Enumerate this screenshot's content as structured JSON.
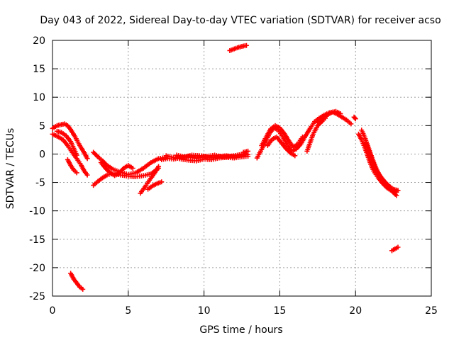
{
  "chart_data": {
    "type": "scatter",
    "title": "Day 043 of 2022, Sidereal Day-to-day VTEC variation (SDTVAR) for receiver acso",
    "xlabel": "GPS time / hours",
    "ylabel": "SDTVAR / TECUs",
    "xlim": [
      0,
      25
    ],
    "ylim": [
      -25,
      20
    ],
    "xticks": [
      0,
      5,
      10,
      15,
      20,
      25
    ],
    "yticks": [
      -25,
      -20,
      -15,
      -10,
      -5,
      0,
      5,
      10,
      15,
      20
    ],
    "grid": true,
    "marker": "+",
    "series": [
      {
        "name": "SDTVAR",
        "color": "#ff0000",
        "segments": [
          [
            [
              0.0,
              4.5
            ],
            [
              0.3,
              5.0
            ],
            [
              0.6,
              5.2
            ],
            [
              0.8,
              5.3
            ],
            [
              1.0,
              5.0
            ],
            [
              1.2,
              4.3
            ],
            [
              1.5,
              3.0
            ],
            [
              1.8,
              1.5
            ],
            [
              2.1,
              0.2
            ],
            [
              2.3,
              -0.8
            ]
          ],
          [
            [
              0.0,
              3.5
            ],
            [
              0.4,
              3.0
            ],
            [
              0.7,
              2.5
            ],
            [
              1.0,
              1.5
            ],
            [
              1.3,
              0.3
            ],
            [
              1.6,
              -0.8
            ],
            [
              1.9,
              -2.0
            ],
            [
              2.1,
              -3.0
            ],
            [
              2.3,
              -3.7
            ]
          ],
          [
            [
              0.3,
              4.0
            ],
            [
              0.6,
              3.8
            ],
            [
              0.9,
              3.2
            ],
            [
              1.2,
              2.2
            ],
            [
              1.4,
              1.0
            ],
            [
              1.6,
              -0.2
            ]
          ],
          [
            [
              1.0,
              -1.0
            ],
            [
              1.2,
              -2.0
            ],
            [
              1.4,
              -2.8
            ],
            [
              1.6,
              -3.3
            ]
          ],
          [
            [
              1.2,
              -21.0
            ],
            [
              1.4,
              -22.0
            ],
            [
              1.6,
              -22.7
            ],
            [
              1.8,
              -23.4
            ],
            [
              2.0,
              -23.8
            ]
          ],
          [
            [
              2.7,
              0.3
            ],
            [
              3.0,
              -0.5
            ],
            [
              3.3,
              -1.2
            ],
            [
              3.6,
              -2.0
            ],
            [
              4.0,
              -2.7
            ],
            [
              4.5,
              -3.2
            ],
            [
              5.0,
              -3.6
            ],
            [
              5.5,
              -3.3
            ],
            [
              6.0,
              -2.5
            ],
            [
              6.5,
              -1.5
            ],
            [
              7.0,
              -0.8
            ],
            [
              7.5,
              -0.6
            ]
          ],
          [
            [
              2.7,
              -5.5
            ],
            [
              3.0,
              -4.8
            ],
            [
              3.3,
              -4.2
            ],
            [
              3.6,
              -3.7
            ],
            [
              4.0,
              -3.4
            ],
            [
              4.5,
              -3.7
            ],
            [
              5.0,
              -3.9
            ],
            [
              5.5,
              -4.0
            ],
            [
              6.0,
              -3.8
            ],
            [
              6.5,
              -3.5
            ],
            [
              7.0,
              -2.5
            ]
          ],
          [
            [
              3.2,
              -1.5
            ],
            [
              3.5,
              -2.5
            ],
            [
              3.8,
              -3.3
            ],
            [
              4.1,
              -3.8
            ],
            [
              4.4,
              -3.4
            ],
            [
              4.7,
              -2.5
            ],
            [
              5.0,
              -2.0
            ],
            [
              5.3,
              -2.5
            ]
          ],
          [
            [
              5.8,
              -6.9
            ],
            [
              6.1,
              -5.8
            ],
            [
              6.4,
              -4.6
            ],
            [
              6.7,
              -3.5
            ],
            [
              7.0,
              -2.2
            ]
          ],
          [
            [
              6.3,
              -6.2
            ],
            [
              6.6,
              -5.6
            ],
            [
              6.9,
              -5.2
            ],
            [
              7.2,
              -4.9
            ]
          ],
          [
            [
              7.2,
              -1.0
            ],
            [
              7.6,
              -0.8
            ],
            [
              8.0,
              -0.9
            ],
            [
              8.5,
              -0.6
            ],
            [
              9.0,
              -0.4
            ],
            [
              9.5,
              -0.8
            ],
            [
              10.0,
              -0.5
            ],
            [
              10.5,
              -0.7
            ],
            [
              11.0,
              -0.4
            ],
            [
              11.5,
              -0.3
            ],
            [
              12.0,
              -0.5
            ],
            [
              12.5,
              -0.3
            ],
            [
              12.9,
              -0.1
            ]
          ],
          [
            [
              7.5,
              -0.3
            ],
            [
              8.0,
              -0.6
            ],
            [
              8.5,
              -0.9
            ],
            [
              9.0,
              -1.1
            ],
            [
              9.5,
              -1.2
            ],
            [
              10.0,
              -0.9
            ],
            [
              10.5,
              -1.0
            ],
            [
              11.0,
              -0.7
            ],
            [
              11.5,
              -0.6
            ],
            [
              12.0,
              -0.7
            ],
            [
              12.5,
              -0.5
            ],
            [
              12.9,
              -0.4
            ]
          ],
          [
            [
              8.2,
              -0.2
            ],
            [
              8.7,
              -0.5
            ],
            [
              9.2,
              -0.2
            ],
            [
              9.7,
              -0.3
            ],
            [
              10.2,
              -0.4
            ],
            [
              10.7,
              -0.2
            ],
            [
              11.2,
              -0.5
            ],
            [
              11.7,
              -0.4
            ],
            [
              12.2,
              -0.2
            ],
            [
              12.7,
              0.1
            ]
          ],
          [
            [
              11.7,
              18.2
            ],
            [
              12.0,
              18.5
            ],
            [
              12.3,
              18.8
            ],
            [
              12.6,
              19.0
            ],
            [
              12.8,
              19.1
            ]
          ],
          [
            [
              12.6,
              0.3
            ],
            [
              12.9,
              0.5
            ]
          ],
          [
            [
              13.5,
              -0.7
            ],
            [
              13.8,
              0.8
            ],
            [
              14.1,
              2.3
            ],
            [
              14.3,
              3.5
            ],
            [
              14.6,
              4.6
            ],
            [
              14.9,
              4.2
            ],
            [
              15.2,
              3.0
            ],
            [
              15.5,
              1.6
            ],
            [
              15.8,
              0.5
            ],
            [
              16.1,
              0.9
            ],
            [
              16.4,
              1.8
            ],
            [
              16.7,
              3.2
            ],
            [
              17.0,
              4.5
            ],
            [
              17.3,
              5.7
            ],
            [
              17.6,
              6.3
            ],
            [
              17.9,
              6.8
            ],
            [
              18.2,
              7.2
            ],
            [
              18.5,
              7.4
            ],
            [
              18.8,
              7.0
            ],
            [
              19.1,
              6.5
            ],
            [
              19.4,
              6.0
            ],
            [
              19.7,
              5.3
            ]
          ],
          [
            [
              13.8,
              1.5
            ],
            [
              14.1,
              3.0
            ],
            [
              14.4,
              4.4
            ],
            [
              14.7,
              5.0
            ],
            [
              15.0,
              4.6
            ],
            [
              15.3,
              3.6
            ],
            [
              15.6,
              2.3
            ],
            [
              15.9,
              1.2
            ],
            [
              16.2,
              1.8
            ],
            [
              16.5,
              3.0
            ]
          ],
          [
            [
              14.2,
              1.5
            ],
            [
              14.5,
              2.6
            ],
            [
              14.8,
              3.0
            ],
            [
              15.1,
              2.0
            ],
            [
              15.4,
              1.0
            ],
            [
              15.7,
              0.2
            ],
            [
              16.0,
              -0.3
            ]
          ],
          [
            [
              16.8,
              0.5
            ],
            [
              17.0,
              2.0
            ],
            [
              17.2,
              3.5
            ],
            [
              17.5,
              5.0
            ],
            [
              17.8,
              5.8
            ],
            [
              18.0,
              6.3
            ]
          ],
          [
            [
              17.5,
              5.5
            ],
            [
              17.8,
              6.2
            ],
            [
              18.1,
              6.8
            ],
            [
              18.4,
              7.3
            ],
            [
              18.7,
              7.5
            ],
            [
              19.0,
              7.1
            ]
          ],
          [
            [
              19.9,
              6.5
            ],
            [
              20.0,
              6.2
            ]
          ],
          [
            [
              20.2,
              3.5
            ],
            [
              20.4,
              2.5
            ],
            [
              20.6,
              1.2
            ],
            [
              20.8,
              -0.3
            ],
            [
              21.0,
              -1.8
            ],
            [
              21.2,
              -3.0
            ],
            [
              21.5,
              -4.2
            ],
            [
              21.8,
              -5.2
            ],
            [
              22.1,
              -6.0
            ],
            [
              22.4,
              -6.5
            ],
            [
              22.7,
              -6.7
            ]
          ],
          [
            [
              20.4,
              4.2
            ],
            [
              20.6,
              3.0
            ],
            [
              20.8,
              1.5
            ],
            [
              21.0,
              0.0
            ],
            [
              21.2,
              -1.5
            ],
            [
              21.4,
              -2.8
            ],
            [
              21.6,
              -3.8
            ],
            [
              21.9,
              -4.8
            ],
            [
              22.2,
              -5.6
            ],
            [
              22.5,
              -6.2
            ],
            [
              22.8,
              -6.4
            ]
          ],
          [
            [
              20.7,
              2.0
            ],
            [
              20.9,
              0.5
            ],
            [
              21.1,
              -1.0
            ],
            [
              21.3,
              -2.3
            ],
            [
              21.5,
              -3.4
            ],
            [
              21.8,
              -4.5
            ],
            [
              22.1,
              -5.5
            ],
            [
              22.4,
              -6.5
            ],
            [
              22.7,
              -7.3
            ]
          ],
          [
            [
              22.4,
              -17.0
            ],
            [
              22.6,
              -16.7
            ],
            [
              22.8,
              -16.4
            ]
          ]
        ]
      }
    ]
  }
}
